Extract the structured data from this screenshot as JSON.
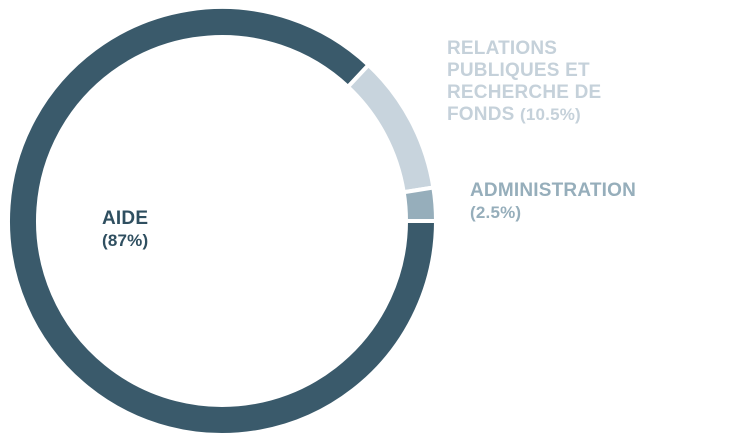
{
  "chart_data": {
    "type": "donut",
    "categories": [
      "AIDE",
      "RELATIONS PUBLIQUES ET RECHERCHE DE FONDS",
      "ADMINISTRATION"
    ],
    "values": [
      87,
      10.5,
      2.5
    ],
    "value_labels": [
      "(87%)",
      "(10.5%)",
      "(2.5%)"
    ],
    "colors": [
      "#3a5a6b",
      "#c8d4dd",
      "#96aebb"
    ]
  }
}
